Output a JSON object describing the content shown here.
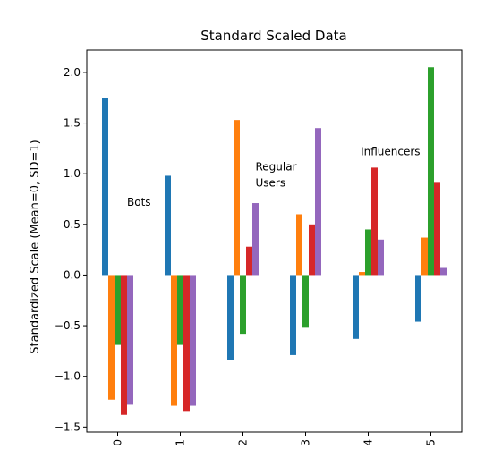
{
  "chart_data": {
    "type": "bar",
    "title": "Standard Scaled Data",
    "xlabel": "",
    "ylabel": "Standardized Scale (Mean=0, SD=1)",
    "categories": [
      "0",
      "1",
      "2",
      "3",
      "4",
      "5"
    ],
    "ylim": [
      -1.55,
      2.22
    ],
    "yticks": [
      -1.5,
      -1.0,
      -0.5,
      0.0,
      0.5,
      1.0,
      1.5,
      2.0
    ],
    "ytick_labels": [
      "−1.5",
      "−1.0",
      "−0.5",
      "0.0",
      "0.5",
      "1.0",
      "1.5",
      "2.0"
    ],
    "grid": false,
    "legend": "none",
    "series": [
      {
        "color": "#1f77b4",
        "values": [
          1.75,
          0.98,
          -0.84,
          -0.79,
          -0.63,
          -0.46
        ]
      },
      {
        "color": "#ff7f0e",
        "values": [
          -1.23,
          -1.29,
          1.53,
          0.6,
          0.03,
          0.37
        ]
      },
      {
        "color": "#2ca02c",
        "values": [
          -0.69,
          -0.69,
          -0.58,
          -0.52,
          0.45,
          2.05
        ]
      },
      {
        "color": "#d62728",
        "values": [
          -1.38,
          -1.35,
          0.28,
          0.5,
          1.06,
          0.91
        ]
      },
      {
        "color": "#9467bd",
        "values": [
          -1.28,
          -1.29,
          0.71,
          1.45,
          0.35,
          0.07
        ]
      }
    ],
    "annotations": [
      {
        "lines": [
          "Bots"
        ],
        "x": 0.15,
        "y": 0.72
      },
      {
        "lines": [
          "Regular",
          "Users"
        ],
        "x": 2.2,
        "y": 1.07
      },
      {
        "lines": [
          "Influencers"
        ],
        "x": 3.88,
        "y": 1.22
      }
    ]
  }
}
